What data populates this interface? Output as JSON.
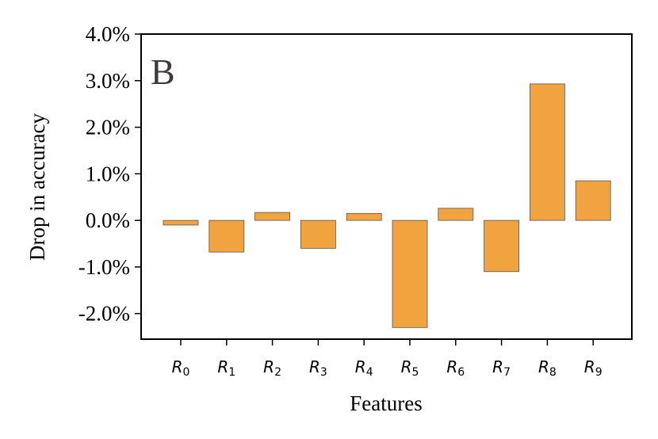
{
  "chart_data": {
    "type": "bar",
    "panel_label": "B",
    "xlabel": "Features",
    "ylabel": "Drop in accuracy",
    "categories": [
      {
        "base": "R",
        "sub": "0"
      },
      {
        "base": "R",
        "sub": "1"
      },
      {
        "base": "R",
        "sub": "2"
      },
      {
        "base": "R",
        "sub": "3"
      },
      {
        "base": "R",
        "sub": "4"
      },
      {
        "base": "R",
        "sub": "5"
      },
      {
        "base": "R",
        "sub": "6"
      },
      {
        "base": "R",
        "sub": "7"
      },
      {
        "base": "R",
        "sub": "8"
      },
      {
        "base": "R",
        "sub": "9"
      }
    ],
    "values": [
      -0.1,
      -0.68,
      0.17,
      -0.6,
      0.15,
      -2.3,
      0.26,
      -1.1,
      2.93,
      0.85
    ],
    "ylim": [
      -2.55,
      4.0
    ],
    "yticks": [
      -2.0,
      -1.0,
      0.0,
      1.0,
      2.0,
      3.0,
      4.0
    ],
    "ytick_labels": [
      "-2.0%",
      "-1.0%",
      "0.0%",
      "1.0%",
      "2.0%",
      "3.0%",
      "4.0%"
    ],
    "bar_color": "#f0a33e",
    "bar_edge_color": "#555555",
    "grid": false,
    "legend": "none"
  }
}
